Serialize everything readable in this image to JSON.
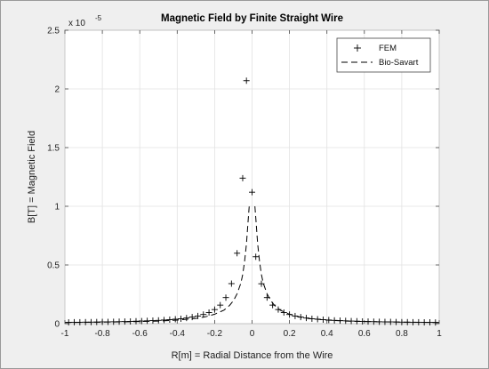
{
  "chart_data": {
    "type": "line",
    "title": "Magnetic Field by Finite Straight Wire",
    "xlabel": "R[m] = Radial Distance from the Wire",
    "ylabel": "B[T] = Magnetic Field",
    "xlim": [
      -1,
      1
    ],
    "ylim": [
      0,
      2.5
    ],
    "y_exponent_label": "x 10",
    "y_exponent_power": "-5",
    "grid": true,
    "legend_position": "top-right",
    "x_ticks": [
      -1,
      -0.8,
      -0.6,
      -0.4,
      -0.2,
      0,
      0.2,
      0.4,
      0.6,
      0.8,
      1
    ],
    "x_tick_labels": [
      "-1",
      "-0.8",
      "-0.6",
      "-0.4",
      "-0.2",
      "0",
      "0.2",
      "0.4",
      "0.6",
      "0.8",
      "1"
    ],
    "y_ticks": [
      0,
      0.5,
      1,
      1.5,
      2,
      2.5
    ],
    "y_tick_labels": [
      "0",
      "0.5",
      "1",
      "1.5",
      "2",
      "2.5"
    ],
    "series": [
      {
        "name": "FEM",
        "marker": "+",
        "color": "#000000",
        "x": [
          -0.98,
          -0.95,
          -0.92,
          -0.89,
          -0.86,
          -0.83,
          -0.8,
          -0.77,
          -0.74,
          -0.71,
          -0.68,
          -0.65,
          -0.62,
          -0.59,
          -0.56,
          -0.53,
          -0.5,
          -0.47,
          -0.44,
          -0.41,
          -0.38,
          -0.35,
          -0.32,
          -0.29,
          -0.26,
          -0.23,
          -0.2,
          -0.17,
          -0.14,
          -0.11,
          -0.08,
          -0.05,
          -0.03,
          0.0,
          0.02,
          0.05,
          0.08,
          0.11,
          0.14,
          0.17,
          0.2,
          0.23,
          0.26,
          0.29,
          0.32,
          0.35,
          0.38,
          0.41,
          0.44,
          0.47,
          0.5,
          0.53,
          0.56,
          0.59,
          0.62,
          0.65,
          0.68,
          0.71,
          0.74,
          0.77,
          0.8,
          0.83,
          0.86,
          0.89,
          0.92,
          0.95,
          0.98
        ],
        "y": [
          0.011,
          0.012,
          0.012,
          0.013,
          0.013,
          0.014,
          0.015,
          0.015,
          0.016,
          0.017,
          0.018,
          0.019,
          0.021,
          0.022,
          0.024,
          0.026,
          0.028,
          0.031,
          0.034,
          0.038,
          0.042,
          0.048,
          0.056,
          0.065,
          0.078,
          0.095,
          0.12,
          0.158,
          0.222,
          0.341,
          0.6,
          1.24,
          2.07,
          1.12,
          0.57,
          0.34,
          0.222,
          0.158,
          0.12,
          0.095,
          0.078,
          0.065,
          0.056,
          0.048,
          0.042,
          0.038,
          0.034,
          0.031,
          0.028,
          0.026,
          0.024,
          0.022,
          0.021,
          0.019,
          0.018,
          0.017,
          0.016,
          0.015,
          0.015,
          0.014,
          0.013,
          0.013,
          0.012,
          0.012,
          0.011,
          0.011,
          0.01
        ]
      },
      {
        "name": "Bio-Savart",
        "line_style": "dashed",
        "color": "#000000",
        "x": [
          -1,
          -0.9,
          -0.8,
          -0.7,
          -0.6,
          -0.5,
          -0.4,
          -0.3,
          -0.25,
          -0.2,
          -0.15,
          -0.12,
          -0.1,
          -0.08,
          -0.06,
          -0.05,
          -0.04,
          -0.03,
          -0.02,
          -0.015,
          0.015,
          0.02,
          0.03,
          0.04,
          0.05,
          0.06,
          0.08,
          0.1,
          0.12,
          0.15,
          0.2,
          0.25,
          0.3,
          0.4,
          0.5,
          0.6,
          0.7,
          0.8,
          0.9,
          1
        ],
        "y": [
          0.01,
          0.011,
          0.013,
          0.015,
          0.018,
          0.022,
          0.03,
          0.045,
          0.058,
          0.08,
          0.115,
          0.155,
          0.195,
          0.255,
          0.345,
          0.42,
          0.53,
          0.68,
          0.9,
          1.0,
          1.0,
          0.9,
          0.68,
          0.53,
          0.42,
          0.345,
          0.255,
          0.195,
          0.155,
          0.115,
          0.08,
          0.058,
          0.045,
          0.03,
          0.022,
          0.018,
          0.015,
          0.013,
          0.011,
          0.01
        ]
      }
    ]
  }
}
